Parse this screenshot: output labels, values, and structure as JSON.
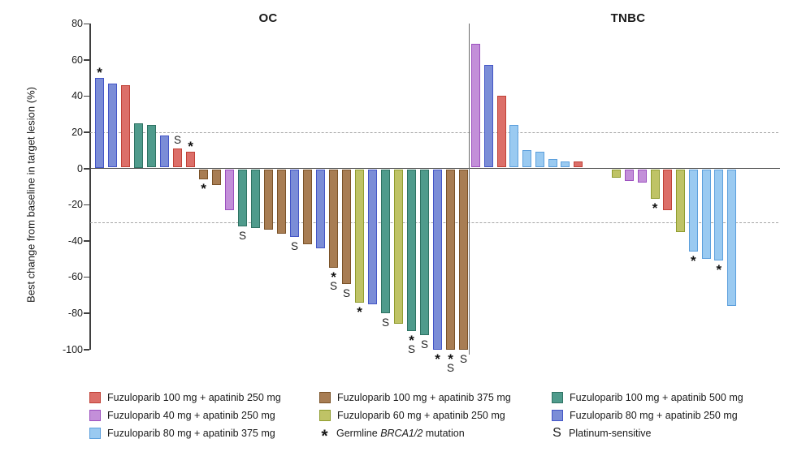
{
  "chart_data": {
    "type": "bar",
    "subtype": "waterfall",
    "title": "",
    "ylabel": "Best change from baseline in target lesion (%)",
    "ylim": [
      -100,
      80
    ],
    "yticks": [
      80,
      60,
      40,
      20,
      0,
      -20,
      -40,
      -60,
      -80,
      -100
    ],
    "reference_lines": [
      20,
      -30
    ],
    "grid": false,
    "legend_position": "bottom",
    "groups": {
      "f100a250": {
        "label": "Fuzuloparib 100 mg + apatinib 250 mg",
        "fill": "#DC6F69",
        "stroke": "#C04137"
      },
      "f100a375": {
        "label": "Fuzuloparib 100 mg + apatinib 375 mg",
        "fill": "#A87D53",
        "stroke": "#7A5228"
      },
      "f100a500": {
        "label": "Fuzuloparib 100 mg + apatinib 500 mg",
        "fill": "#4F9B8C",
        "stroke": "#2F7263"
      },
      "f40a250": {
        "label": "Fuzuloparib 40 mg + apatinib 250 mg",
        "fill": "#C38FD9",
        "stroke": "#9C50BF"
      },
      "f60a250": {
        "label": "Fuzuloparib 60 mg + apatinib 250 mg",
        "fill": "#BFC366",
        "stroke": "#8F9C2F"
      },
      "f80a250": {
        "label": "Fuzuloparib 80 mg + apatinib 250 mg",
        "fill": "#7B8DD7",
        "stroke": "#4355C6"
      },
      "f80a375": {
        "label": "Fuzuloparib 80 mg + apatinib 375 mg",
        "fill": "#9ACAF1",
        "stroke": "#5C9FDC"
      }
    },
    "panels": [
      {
        "title": "OC",
        "bars": [
          {
            "value": 50,
            "group": "f80a250",
            "marks": "*"
          },
          {
            "value": 47,
            "group": "f80a250",
            "marks": ""
          },
          {
            "value": 46,
            "group": "f100a250",
            "marks": ""
          },
          {
            "value": 25,
            "group": "f100a500",
            "marks": ""
          },
          {
            "value": 24,
            "group": "f100a500",
            "marks": ""
          },
          {
            "value": 18,
            "group": "f80a250",
            "marks": ""
          },
          {
            "value": 11,
            "group": "f100a250",
            "marks": "S"
          },
          {
            "value": 9,
            "group": "f100a250",
            "marks": "*"
          },
          {
            "value": -6,
            "group": "f100a375",
            "marks": "*"
          },
          {
            "value": -9,
            "group": "f100a375",
            "marks": ""
          },
          {
            "value": -23,
            "group": "f40a250",
            "marks": ""
          },
          {
            "value": -32,
            "group": "f100a500",
            "marks": "S"
          },
          {
            "value": -33,
            "group": "f100a500",
            "marks": ""
          },
          {
            "value": -34,
            "group": "f100a375",
            "marks": ""
          },
          {
            "value": -36,
            "group": "f100a375",
            "marks": ""
          },
          {
            "value": -38,
            "group": "f80a250",
            "marks": "S"
          },
          {
            "value": -42,
            "group": "f100a375",
            "marks": ""
          },
          {
            "value": -44,
            "group": "f80a250",
            "marks": ""
          },
          {
            "value": -55,
            "group": "f100a375",
            "marks": "*S"
          },
          {
            "value": -64,
            "group": "f100a375",
            "marks": "S"
          },
          {
            "value": -74,
            "group": "f60a250",
            "marks": "*"
          },
          {
            "value": -75,
            "group": "f80a250",
            "marks": ""
          },
          {
            "value": -80,
            "group": "f100a500",
            "marks": "S"
          },
          {
            "value": -86,
            "group": "f60a250",
            "marks": ""
          },
          {
            "value": -90,
            "group": "f100a500",
            "marks": "*S"
          },
          {
            "value": -92,
            "group": "f100a500",
            "marks": "S"
          },
          {
            "value": -100,
            "group": "f80a250",
            "marks": "*"
          },
          {
            "value": -100,
            "group": "f100a375",
            "marks": "*S"
          },
          {
            "value": -100,
            "group": "f100a375",
            "marks": "S"
          }
        ]
      },
      {
        "title": "TNBC",
        "bars": [
          {
            "value": 69,
            "group": "f40a250",
            "marks": ""
          },
          {
            "value": 57,
            "group": "f80a250",
            "marks": ""
          },
          {
            "value": 40,
            "group": "f100a250",
            "marks": ""
          },
          {
            "value": 24,
            "group": "f80a375",
            "marks": ""
          },
          {
            "value": 10,
            "group": "f80a375",
            "marks": ""
          },
          {
            "value": 9,
            "group": "f80a375",
            "marks": ""
          },
          {
            "value": 5,
            "group": "f80a375",
            "marks": ""
          },
          {
            "value": 4,
            "group": "f80a375",
            "marks": ""
          },
          {
            "value": 4,
            "group": "f100a250",
            "marks": ""
          },
          {
            "value": 0,
            "group": null,
            "marks": ""
          },
          {
            "value": 0,
            "group": null,
            "marks": ""
          },
          {
            "value": -5,
            "group": "f60a250",
            "marks": ""
          },
          {
            "value": -7,
            "group": "f40a250",
            "marks": ""
          },
          {
            "value": -8,
            "group": "f40a250",
            "marks": ""
          },
          {
            "value": -17,
            "group": "f60a250",
            "marks": "*"
          },
          {
            "value": -23,
            "group": "f100a250",
            "marks": ""
          },
          {
            "value": -35,
            "group": "f60a250",
            "marks": ""
          },
          {
            "value": -46,
            "group": "f80a375",
            "marks": "*"
          },
          {
            "value": -50,
            "group": "f80a375",
            "marks": ""
          },
          {
            "value": -51,
            "group": "f80a375",
            "marks": "*"
          },
          {
            "value": -76,
            "group": "f80a375",
            "marks": ""
          }
        ]
      }
    ],
    "legend": {
      "items": [
        {
          "swatch": "f100a250",
          "label": "Fuzuloparib 100 mg + apatinib 250 mg"
        },
        {
          "swatch": "f100a375",
          "label": "Fuzuloparib 100 mg + apatinib 375 mg"
        },
        {
          "swatch": "f100a500",
          "label": "Fuzuloparib 100 mg + apatinib 500 mg"
        },
        {
          "swatch": "f40a250",
          "label": "Fuzuloparib 40 mg + apatinib 250 mg"
        },
        {
          "swatch": "f60a250",
          "label": "Fuzuloparib 60 mg + apatinib 250 mg"
        },
        {
          "swatch": "f80a250",
          "label": "Fuzuloparib 80 mg + apatinib 250 mg"
        },
        {
          "swatch": "f80a375",
          "label": "Fuzuloparib 80 mg + apatinib 375 mg"
        },
        {
          "symbol": "*",
          "label": "Germline BRCA1/2 mutation",
          "italic_part": "BRCA1/2"
        },
        {
          "symbol": "S",
          "label": "Platinum-sensitive"
        }
      ]
    }
  }
}
